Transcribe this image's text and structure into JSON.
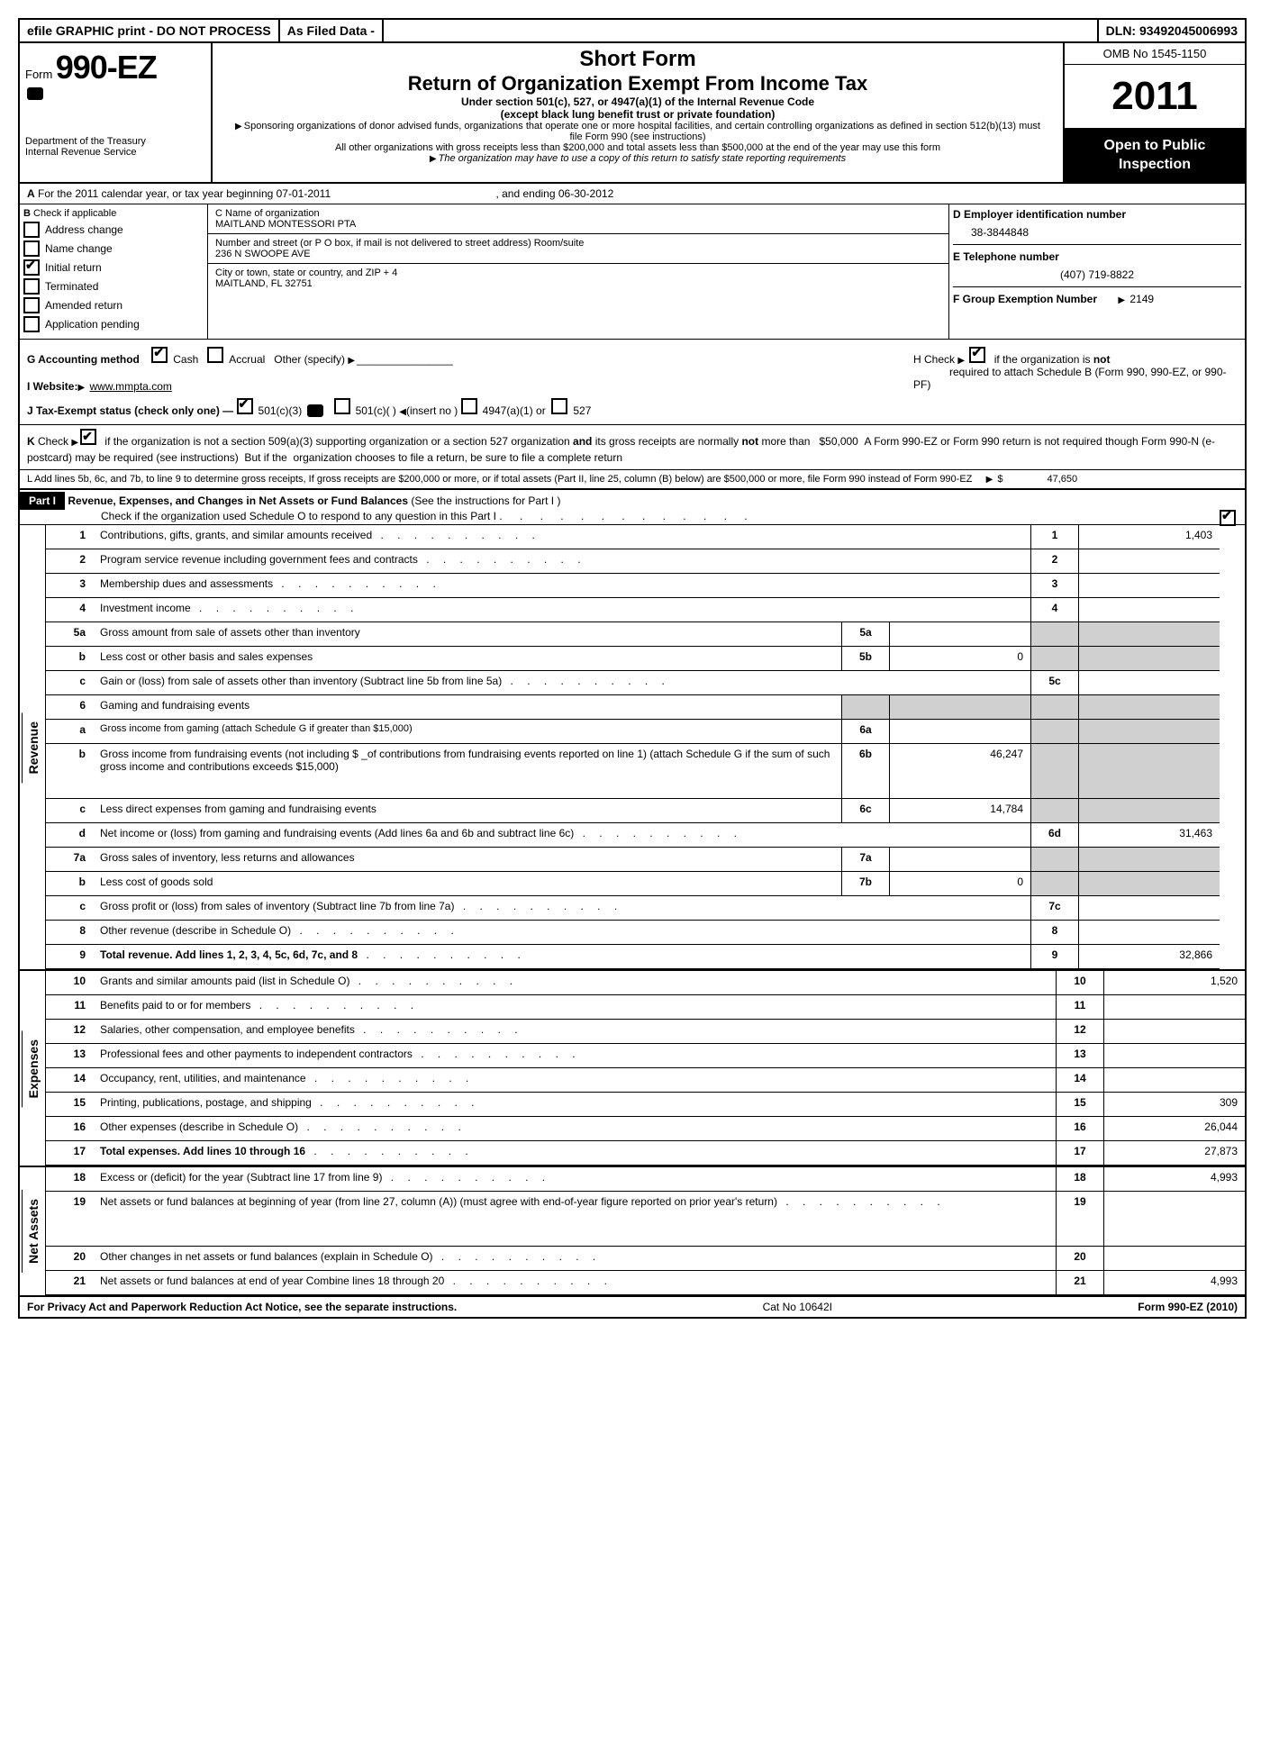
{
  "topbar": {
    "efile": "efile GRAPHIC print - DO NOT PROCESS",
    "asfiled": "As Filed Data -",
    "dln": "DLN: 93492045006993"
  },
  "header": {
    "form_prefix": "Form",
    "form_num": "990-EZ",
    "dept1": "Department of the Treasury",
    "dept2": "Internal Revenue Service",
    "short_form": "Short Form",
    "title": "Return of Organization Exempt From Income Tax",
    "sub1": "Under section 501(c), 527, or 4947(a)(1) of the Internal Revenue Code",
    "sub2": "(except black lung benefit trust or private foundation)",
    "note1": "Sponsoring organizations of donor advised funds, organizations that operate one or more hospital facilities, and certain controlling organizations as defined in section 512(b)(13) must file Form 990 (see instructions)",
    "note2": "All other organizations with gross receipts less than $200,000 and total assets less than $500,000 at the end of the year may use this form",
    "note3": "The organization may have to use a copy of this return to satisfy state reporting requirements",
    "omb": "OMB No 1545-1150",
    "year": "2011",
    "open": "Open to Public Inspection"
  },
  "lineA": {
    "text": "For the 2011 calendar year, or tax year beginning 07-01-2011",
    "ending": ", and ending 06-30-2012"
  },
  "colB": {
    "title": "Check if applicable",
    "items": [
      "Address change",
      "Name change",
      "Initial return",
      "Terminated",
      "Amended return",
      "Application pending"
    ],
    "checked_idx": 2
  },
  "colC": {
    "name_label": "C Name of organization",
    "name": "MAITLAND MONTESSORI PTA",
    "addr_label": "Number and street (or P O box, if mail is not delivered to street address) Room/suite",
    "addr": "236 N SWOOPE AVE",
    "city_label": "City or town, state or country, and ZIP + 4",
    "city": "MAITLAND, FL  32751"
  },
  "colD": {
    "ein_label": "D Employer identification number",
    "ein": "38-3844848",
    "tel_label": "E Telephone number",
    "tel": "(407) 719-8822",
    "grp_label": "F Group Exemption Number",
    "grp": "2149"
  },
  "rowG": {
    "label": "G Accounting method",
    "cash": "Cash",
    "accrual": "Accrual",
    "other": "Other (specify)",
    "h_text": "if the organization is",
    "h_not": "not",
    "h_text2": "required to attach Schedule B (Form 990, 990-EZ, or 990-PF)",
    "h_prefix": "H   Check"
  },
  "rowI": {
    "label": "I Website:",
    "url": "www.mmpta.com"
  },
  "rowJ": {
    "label": "J Tax-Exempt status (check only one) —",
    "opt1": "501(c)(3)",
    "opt2": "501(c)(  )",
    "insert": "(insert no )",
    "opt3": "4947(a)(1) or",
    "opt4": "527"
  },
  "rowK": "K Check ▶ ☑ if the organization is not a section 509(a)(3) supporting organization or a section 527 organization and its gross receipts are normally not more than   $50,000  A Form 990-EZ or Form 990 return is not required though Form 990-N (e-postcard) may be required (see instructions)  But if the  organization chooses to file a return, be sure to file a complete return",
  "rowL": {
    "text": "L Add lines 5b, 6c, and 7b, to line 9 to determine gross receipts, If gross receipts are $200,000 or more, or if total assets (Part II, line 25, column (B) below) are $500,000 or more,  file Form 990 instead of Form 990-EZ",
    "amount": "47,650"
  },
  "part1": {
    "label": "Part I",
    "title": "Revenue, Expenses, and Changes in Net Assets or Fund Balances",
    "instr": "(See the instructions for Part I )",
    "check_o": "Check if the organization used Schedule O to respond to any question in this Part I"
  },
  "sections": {
    "revenue": "Revenue",
    "expenses": "Expenses",
    "netassets": "Net Assets"
  },
  "lines": [
    {
      "n": "1",
      "d": "Contributions, gifts, grants, and similar amounts received",
      "rn": "1",
      "rv": "1,403"
    },
    {
      "n": "2",
      "d": "Program service revenue including government fees and contracts",
      "rn": "2",
      "rv": ""
    },
    {
      "n": "3",
      "d": "Membership dues and assessments",
      "rn": "3",
      "rv": ""
    },
    {
      "n": "4",
      "d": "Investment income",
      "rn": "4",
      "rv": ""
    },
    {
      "n": "5a",
      "d": "Gross amount from sale of assets other than inventory",
      "mn": "5a",
      "mv": "",
      "shade": true
    },
    {
      "n": "b",
      "d": "Less  cost or other basis and sales expenses",
      "mn": "5b",
      "mv": "0",
      "shade": true
    },
    {
      "n": "c",
      "d": "Gain or (loss) from sale of assets other than inventory (Subtract line 5b from line 5a)",
      "rn": "5c",
      "rv": ""
    },
    {
      "n": "6",
      "d": "Gaming and fundraising events",
      "shade_all": true
    },
    {
      "n": "a",
      "d": "Gross income from gaming (attach Schedule G if greater than $15,000)",
      "mn": "6a",
      "mv": "",
      "shade": true,
      "small": true
    },
    {
      "n": "b",
      "d": "Gross income from fundraising events (not including $ _of contributions from fundraising events reported on line 1) (attach Schedule G if the sum of such gross income and contributions exceeds $15,000)",
      "mn": "6b",
      "mv": "46,247",
      "shade": true,
      "tall": true
    },
    {
      "n": "c",
      "d": "Less  direct expenses from gaming and fundraising events",
      "mn": "6c",
      "mv": "14,784",
      "shade": true
    },
    {
      "n": "d",
      "d": "Net income or (loss) from gaming and fundraising events (Add lines 6a and 6b and subtract line 6c)",
      "rn": "6d",
      "rv": "31,463"
    },
    {
      "n": "7a",
      "d": "Gross sales of inventory, less returns and allowances",
      "mn": "7a",
      "mv": "",
      "shade": true
    },
    {
      "n": "b",
      "d": "Less  cost of goods sold",
      "mn": "7b",
      "mv": "0",
      "shade": true
    },
    {
      "n": "c",
      "d": "Gross profit or (loss) from sales of inventory (Subtract line 7b from line 7a)",
      "rn": "7c",
      "rv": ""
    },
    {
      "n": "8",
      "d": "Other revenue (describe in Schedule O)",
      "rn": "8",
      "rv": ""
    },
    {
      "n": "9",
      "d": "Total revenue. Add lines 1, 2, 3, 4, 5c, 6d, 7c, and 8",
      "rn": "9",
      "rv": "32,866",
      "bold": true
    }
  ],
  "exp_lines": [
    {
      "n": "10",
      "d": "Grants and similar amounts paid (list in Schedule O)",
      "rn": "10",
      "rv": "1,520"
    },
    {
      "n": "11",
      "d": "Benefits paid to or for members",
      "rn": "11",
      "rv": ""
    },
    {
      "n": "12",
      "d": "Salaries, other compensation, and employee benefits",
      "rn": "12",
      "rv": ""
    },
    {
      "n": "13",
      "d": "Professional fees and other payments to independent contractors",
      "rn": "13",
      "rv": ""
    },
    {
      "n": "14",
      "d": "Occupancy, rent, utilities, and maintenance",
      "rn": "14",
      "rv": ""
    },
    {
      "n": "15",
      "d": "Printing, publications, postage, and shipping",
      "rn": "15",
      "rv": "309"
    },
    {
      "n": "16",
      "d": "Other expenses (describe in Schedule O)",
      "rn": "16",
      "rv": "26,044"
    },
    {
      "n": "17",
      "d": "Total expenses. Add lines 10 through 16",
      "rn": "17",
      "rv": "27,873",
      "bold": true
    }
  ],
  "na_lines": [
    {
      "n": "18",
      "d": "Excess or (deficit) for the year (Subtract line 17 from line 9)",
      "rn": "18",
      "rv": "4,993"
    },
    {
      "n": "19",
      "d": "Net assets or fund balances at beginning of year (from line 27, column (A)) (must agree with end-of-year figure reported on prior year's return)",
      "rn": "19",
      "rv": "",
      "tall": true
    },
    {
      "n": "20",
      "d": "Other changes in net assets or fund balances (explain in Schedule O)",
      "rn": "20",
      "rv": ""
    },
    {
      "n": "21",
      "d": "Net assets or fund balances at end of year  Combine lines 18 through 20",
      "rn": "21",
      "rv": "4,993"
    }
  ],
  "footer": {
    "left": "For Privacy Act and Paperwork Reduction Act Notice, see the separate instructions.",
    "mid": "Cat No 10642I",
    "right": "Form 990-EZ (2010)"
  }
}
